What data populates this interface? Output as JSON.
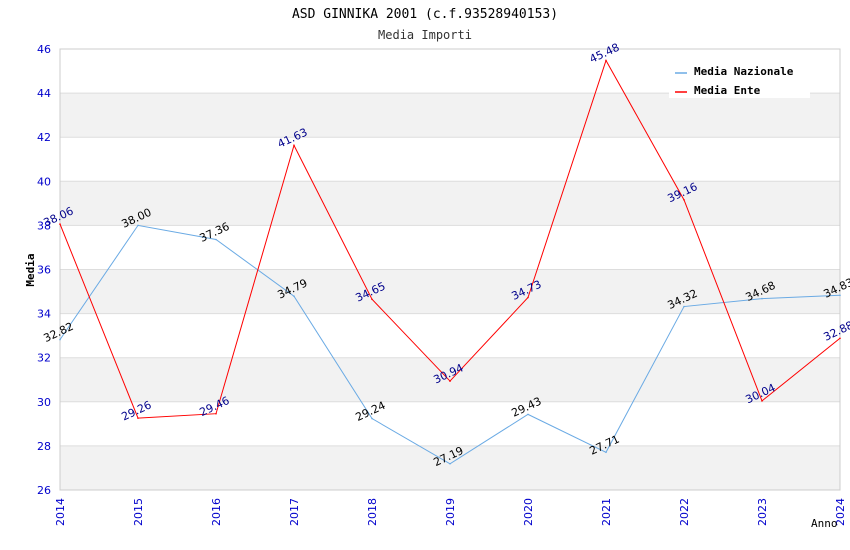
{
  "chart_data": {
    "type": "line",
    "title": "ASD GINNIKA 2001 (c.f.93528940153)",
    "subtitle": "Media Importi",
    "xlabel": "Anno",
    "ylabel": "Media",
    "ylim": [
      26,
      46
    ],
    "yticks": [
      "26",
      "28",
      "30",
      "32",
      "34",
      "36",
      "38",
      "40",
      "42",
      "44",
      "46"
    ],
    "categories": [
      "2014",
      "2015",
      "2016",
      "2017",
      "2018",
      "2019",
      "2020",
      "2021",
      "2022",
      "2023",
      "2024"
    ],
    "legend_position": "top-right",
    "series": [
      {
        "name": "Media Nazionale",
        "color": "#6aaae4",
        "label_color": "#000000",
        "values": [
          32.82,
          38.0,
          37.36,
          34.79,
          29.24,
          27.19,
          29.43,
          27.71,
          34.32,
          34.68,
          34.83
        ],
        "labels": [
          "32.82",
          "38.00",
          "37.36",
          "34.79",
          "29.24",
          "27.19",
          "29.43",
          "27.71",
          "34.32",
          "34.68",
          "34.83"
        ]
      },
      {
        "name": "Media Ente",
        "color": "#ff0000",
        "label_color": "#00008b",
        "values": [
          38.06,
          29.26,
          29.46,
          41.63,
          34.65,
          30.94,
          34.73,
          45.48,
          39.16,
          30.04,
          32.88
        ],
        "labels": [
          "38.06",
          "29.26",
          "29.46",
          "41.63",
          "34.65",
          "30.94",
          "34.73",
          "45.48",
          "39.16",
          "30.04",
          "32.88"
        ]
      }
    ],
    "colors": {
      "tick_label": "#0000cc",
      "band": "#f2f2f2",
      "grid": "#dddddd"
    }
  }
}
